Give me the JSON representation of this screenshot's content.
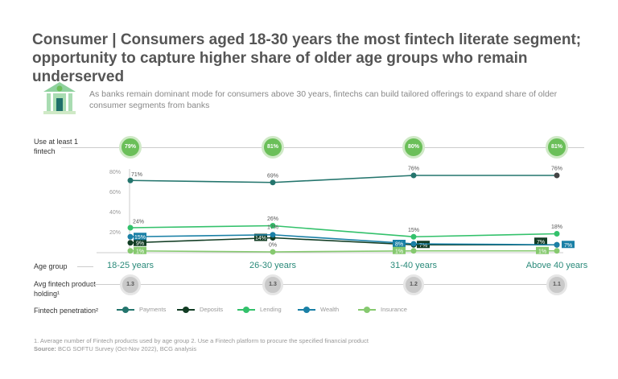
{
  "title": "Consumer | Consumers aged 18-30 years the most fintech literate segment; opportunity to capture higher share of older age groups who remain underserved",
  "subtitle": "As banks remain dominant mode for consumers above 30 years, fintechs can build tailored offerings to expand share of older consumer segments from banks",
  "rows": {
    "use_label": "Use at least 1 fintech",
    "use_values": [
      "79%",
      "81%",
      "80%",
      "81%"
    ],
    "age_label": "Age group",
    "avg_label": "Avg fintech product holding¹",
    "avg_values": [
      "1.3",
      "1.3",
      "1.2",
      "1.1"
    ],
    "penetration_label": "Fintech penetration²"
  },
  "chart_data": {
    "type": "line",
    "categories": [
      "18-25 years",
      "26-30 years",
      "31-40 years",
      "Above 40 years"
    ],
    "ylim": [
      0,
      80
    ],
    "yticks": [
      "20%",
      "40%",
      "60%",
      "80%"
    ],
    "series": [
      {
        "name": "Payments",
        "values": [
          71,
          69,
          76,
          76
        ],
        "color": "#24756d"
      },
      {
        "name": "Deposits",
        "values": [
          9,
          14,
          7,
          7
        ],
        "color": "#123d24"
      },
      {
        "name": "Lending",
        "values": [
          24,
          26,
          15,
          18
        ],
        "color": "#33c16b"
      },
      {
        "name": "Wealth",
        "values": [
          15,
          17,
          8,
          7
        ],
        "color": "#1a80a6"
      },
      {
        "name": "Insurance",
        "values": [
          1,
          0,
          1,
          1
        ],
        "color": "#86c96f"
      }
    ],
    "legend": "bottom"
  },
  "footnotes": {
    "notes": "1. Average number of Fintech products used by age group   2. Use a Fintech platform to procure the specified financial product",
    "source_label": "Source:",
    "source": "BCG SOFTU Survey (Oct-Nov 2022), BCG analysis"
  },
  "icon": "bank-icon"
}
